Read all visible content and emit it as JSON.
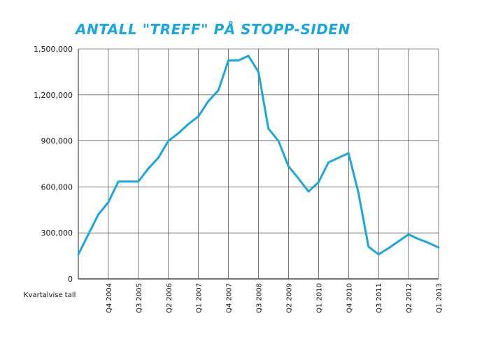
{
  "chart_data": {
    "type": "line",
    "title": "ANTALL \"TREFF\" PÅ STOPP-SIDEN",
    "x_note": "Kvartalvise tall",
    "ylim": [
      0,
      1500000
    ],
    "y_ticks": [
      "0",
      "300,000",
      "600,000",
      "900,000",
      "1,200,000",
      "1,500,000"
    ],
    "y_tick_values": [
      0,
      300000,
      600000,
      900000,
      1200000,
      1500000
    ],
    "x_ticks": [
      "Q4 2004",
      "Q3 2005",
      "Q2 2006",
      "Q1 2007",
      "Q4 2007",
      "Q3 2008",
      "Q2 2009",
      "Q1 2010",
      "Q4 2010",
      "Q3 2011",
      "Q2 2012",
      "Q1 2013"
    ],
    "grid": true,
    "line_color": "#1aa6df",
    "series": [
      {
        "x": [
          "Q1 2004",
          "Q2 2004",
          "Q3 2004",
          "Q4 2004",
          "Q1 2005",
          "Q2 2005",
          "Q3 2005",
          "Q4 2005",
          "Q1 2006",
          "Q2 2006",
          "Q3 2006",
          "Q4 2006",
          "Q1 2007",
          "Q2 2007",
          "Q3 2007",
          "Q4 2007",
          "Q1 2008",
          "Q2 2008",
          "Q3 2008",
          "Q4 2008",
          "Q1 2009",
          "Q2 2009",
          "Q3 2009",
          "Q4 2009",
          "Q1 2010",
          "Q2 2010",
          "Q3 2010",
          "Q4 2010",
          "Q1 2011",
          "Q2 2011",
          "Q3 2011",
          "Q4 2011",
          "Q1 2012",
          "Q2 2012",
          "Q3 2012",
          "Q4 2012",
          "Q1 2013"
        ],
        "values": [
          160000,
          290000,
          420000,
          500000,
          635000,
          635000,
          635000,
          720000,
          790000,
          900000,
          950000,
          1010000,
          1060000,
          1160000,
          1230000,
          1425000,
          1425000,
          1455000,
          1350000,
          980000,
          900000,
          735000,
          655000,
          570000,
          630000,
          760000,
          790000,
          820000,
          560000,
          210000,
          160000,
          200000,
          245000,
          290000,
          260000,
          235000,
          205000
        ]
      }
    ]
  }
}
